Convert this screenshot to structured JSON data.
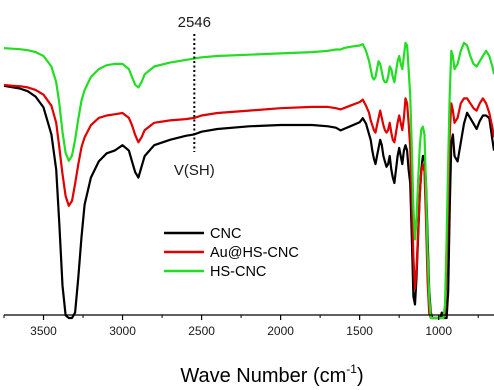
{
  "chart_data": {
    "type": "line",
    "title": "",
    "xlabel": "Wave Number (cm",
    "xlabel_superscript": "-1",
    "xlabel_suffix": ")",
    "ylabel": "",
    "xlim": [
      3750,
      650
    ],
    "x_reversed": true,
    "x_ticks": [
      3500,
      3000,
      2500,
      2000,
      1500,
      1000
    ],
    "y_axis_visible": false,
    "grid": false,
    "legend_position": "lower-center",
    "annotation": {
      "x": 2546,
      "top_label": "2546",
      "bottom_label": "V(SH)",
      "style": "dotted-vertical"
    },
    "series": [
      {
        "name": "CNC",
        "color": "#000000",
        "x": [
          3750,
          3700,
          3650,
          3600,
          3550,
          3500,
          3450,
          3420,
          3400,
          3380,
          3360,
          3340,
          3320,
          3300,
          3280,
          3260,
          3240,
          3200,
          3150,
          3100,
          3050,
          3000,
          2960,
          2940,
          2920,
          2900,
          2880,
          2860,
          2800,
          2700,
          2600,
          2546,
          2500,
          2400,
          2200,
          2000,
          1800,
          1700,
          1650,
          1620,
          1600,
          1560,
          1500,
          1480,
          1460,
          1440,
          1430,
          1420,
          1410,
          1400,
          1390,
          1380,
          1370,
          1360,
          1350,
          1340,
          1330,
          1320,
          1310,
          1300,
          1290,
          1280,
          1270,
          1260,
          1250,
          1240,
          1230,
          1220,
          1210,
          1200,
          1190,
          1180,
          1170,
          1160,
          1150,
          1140,
          1130,
          1120,
          1110,
          1100,
          1090,
          1080,
          1070,
          1060,
          1050,
          1040,
          1030,
          1020,
          1010,
          1000,
          990,
          980,
          970,
          960,
          950,
          940,
          930,
          920,
          910,
          900,
          880,
          860,
          840,
          820,
          800,
          780,
          760,
          740,
          720,
          700,
          680,
          660,
          650
        ],
        "y": [
          0.86,
          0.855,
          0.85,
          0.84,
          0.82,
          0.78,
          0.68,
          0.55,
          0.35,
          0.12,
          0.01,
          0.0,
          0.0,
          0.02,
          0.15,
          0.3,
          0.42,
          0.52,
          0.58,
          0.61,
          0.62,
          0.64,
          0.62,
          0.58,
          0.54,
          0.52,
          0.56,
          0.6,
          0.64,
          0.66,
          0.675,
          0.68,
          0.69,
          0.7,
          0.71,
          0.715,
          0.715,
          0.71,
          0.705,
          0.695,
          0.7,
          0.71,
          0.725,
          0.74,
          0.72,
          0.68,
          0.66,
          0.62,
          0.59,
          0.57,
          0.6,
          0.63,
          0.66,
          0.64,
          0.6,
          0.58,
          0.56,
          0.57,
          0.6,
          0.55,
          0.52,
          0.5,
          0.55,
          0.6,
          0.63,
          0.6,
          0.57,
          0.62,
          0.64,
          0.62,
          0.55,
          0.5,
          0.3,
          0.08,
          0.05,
          0.15,
          0.3,
          0.45,
          0.55,
          0.6,
          0.6,
          0.5,
          0.3,
          0.1,
          0.02,
          0.0,
          0.0,
          0.0,
          0.0,
          0.0,
          0.0,
          0.02,
          0.0,
          0.0,
          0.0,
          0.1,
          0.4,
          0.65,
          0.68,
          0.6,
          0.58,
          0.65,
          0.72,
          0.76,
          0.74,
          0.72,
          0.7,
          0.73,
          0.75,
          0.75,
          0.74,
          0.66,
          0.62
        ]
      },
      {
        "name": "Au@HS-CNC",
        "color": "#e00000",
        "x": [
          3750,
          3700,
          3650,
          3600,
          3550,
          3500,
          3450,
          3420,
          3400,
          3380,
          3360,
          3340,
          3320,
          3300,
          3280,
          3260,
          3240,
          3200,
          3150,
          3100,
          3050,
          3000,
          2960,
          2940,
          2920,
          2900,
          2880,
          2860,
          2800,
          2700,
          2600,
          2546,
          2500,
          2400,
          2200,
          2000,
          1800,
          1700,
          1650,
          1620,
          1600,
          1560,
          1500,
          1480,
          1460,
          1440,
          1430,
          1420,
          1410,
          1400,
          1390,
          1380,
          1370,
          1360,
          1350,
          1340,
          1330,
          1320,
          1310,
          1300,
          1290,
          1280,
          1270,
          1260,
          1250,
          1240,
          1230,
          1220,
          1210,
          1200,
          1190,
          1180,
          1170,
          1160,
          1150,
          1140,
          1130,
          1120,
          1110,
          1100,
          1090,
          1080,
          1070,
          1060,
          1050,
          1040,
          1030,
          1020,
          1010,
          1000,
          990,
          980,
          970,
          960,
          950,
          940,
          930,
          920,
          910,
          900,
          880,
          860,
          840,
          820,
          800,
          780,
          760,
          740,
          720,
          700,
          680,
          660,
          650
        ],
        "y": [
          0.955,
          0.952,
          0.95,
          0.945,
          0.935,
          0.915,
          0.87,
          0.8,
          0.7,
          0.59,
          0.5,
          0.46,
          0.48,
          0.55,
          0.63,
          0.7,
          0.74,
          0.79,
          0.82,
          0.83,
          0.835,
          0.84,
          0.82,
          0.79,
          0.75,
          0.72,
          0.74,
          0.77,
          0.8,
          0.81,
          0.815,
          0.82,
          0.83,
          0.84,
          0.85,
          0.86,
          0.865,
          0.865,
          0.86,
          0.855,
          0.86,
          0.87,
          0.885,
          0.895,
          0.87,
          0.84,
          0.81,
          0.79,
          0.77,
          0.76,
          0.79,
          0.82,
          0.85,
          0.82,
          0.79,
          0.77,
          0.76,
          0.77,
          0.8,
          0.76,
          0.73,
          0.72,
          0.76,
          0.8,
          0.83,
          0.8,
          0.77,
          0.82,
          0.9,
          0.88,
          0.8,
          0.7,
          0.5,
          0.25,
          0.12,
          0.2,
          0.35,
          0.5,
          0.6,
          0.63,
          0.6,
          0.4,
          0.15,
          0.02,
          0.0,
          0.0,
          0.0,
          0.0,
          0.0,
          0.0,
          0.0,
          0.0,
          0.0,
          0.02,
          0.2,
          0.5,
          0.75,
          0.88,
          0.85,
          0.8,
          0.82,
          0.88,
          0.9,
          0.9,
          0.88,
          0.86,
          0.85,
          0.88,
          0.9,
          0.88,
          0.84,
          0.78,
          0.74
        ]
      },
      {
        "name": "HS-CNC",
        "color": "#22dd22",
        "x": [
          3750,
          3700,
          3650,
          3600,
          3550,
          3500,
          3450,
          3420,
          3400,
          3380,
          3360,
          3340,
          3320,
          3300,
          3280,
          3260,
          3240,
          3200,
          3150,
          3100,
          3050,
          3000,
          2960,
          2940,
          2920,
          2900,
          2880,
          2860,
          2800,
          2700,
          2600,
          2546,
          2500,
          2400,
          2200,
          2000,
          1800,
          1700,
          1650,
          1620,
          1600,
          1560,
          1500,
          1480,
          1460,
          1440,
          1430,
          1420,
          1410,
          1400,
          1390,
          1380,
          1370,
          1360,
          1350,
          1340,
          1330,
          1320,
          1310,
          1300,
          1290,
          1280,
          1270,
          1260,
          1250,
          1240,
          1230,
          1220,
          1210,
          1200,
          1190,
          1180,
          1170,
          1160,
          1150,
          1140,
          1130,
          1120,
          1110,
          1100,
          1090,
          1080,
          1070,
          1060,
          1050,
          1040,
          1030,
          1020,
          1010,
          1000,
          990,
          980,
          970,
          960,
          950,
          940,
          930,
          920,
          910,
          900,
          880,
          860,
          840,
          820,
          800,
          780,
          760,
          740,
          720,
          700,
          680,
          660,
          650
        ],
        "y": [
          1.03,
          1.028,
          1.026,
          1.022,
          1.015,
          1.0,
          0.96,
          0.9,
          0.82,
          0.71,
          0.63,
          0.6,
          0.62,
          0.68,
          0.76,
          0.83,
          0.87,
          0.92,
          0.95,
          0.965,
          0.97,
          0.97,
          0.95,
          0.92,
          0.89,
          0.88,
          0.9,
          0.93,
          0.96,
          0.975,
          0.985,
          0.99,
          0.995,
          1.0,
          1.005,
          1.01,
          1.015,
          1.02,
          1.025,
          1.025,
          1.03,
          1.035,
          1.04,
          1.045,
          1.02,
          0.98,
          0.95,
          0.92,
          0.91,
          0.92,
          0.95,
          0.98,
          0.97,
          0.94,
          0.91,
          0.9,
          0.9,
          0.92,
          0.96,
          0.95,
          0.92,
          0.9,
          0.94,
          0.98,
          1.0,
          0.97,
          0.95,
          1.0,
          1.05,
          1.04,
          0.95,
          0.85,
          0.65,
          0.42,
          0.3,
          0.38,
          0.52,
          0.65,
          0.72,
          0.73,
          0.7,
          0.5,
          0.25,
          0.08,
          0.0,
          0.0,
          0.0,
          0.0,
          0.0,
          0.0,
          0.0,
          0.0,
          0.0,
          0.05,
          0.3,
          0.6,
          0.85,
          1.02,
          1.0,
          0.95,
          0.97,
          1.02,
          1.05,
          1.04,
          1.0,
          0.97,
          0.96,
          0.98,
          1.0,
          1.02,
          1.0,
          0.96,
          0.93
        ]
      }
    ],
    "colors": {
      "axis": "#000000",
      "annotation": "#000000"
    }
  }
}
